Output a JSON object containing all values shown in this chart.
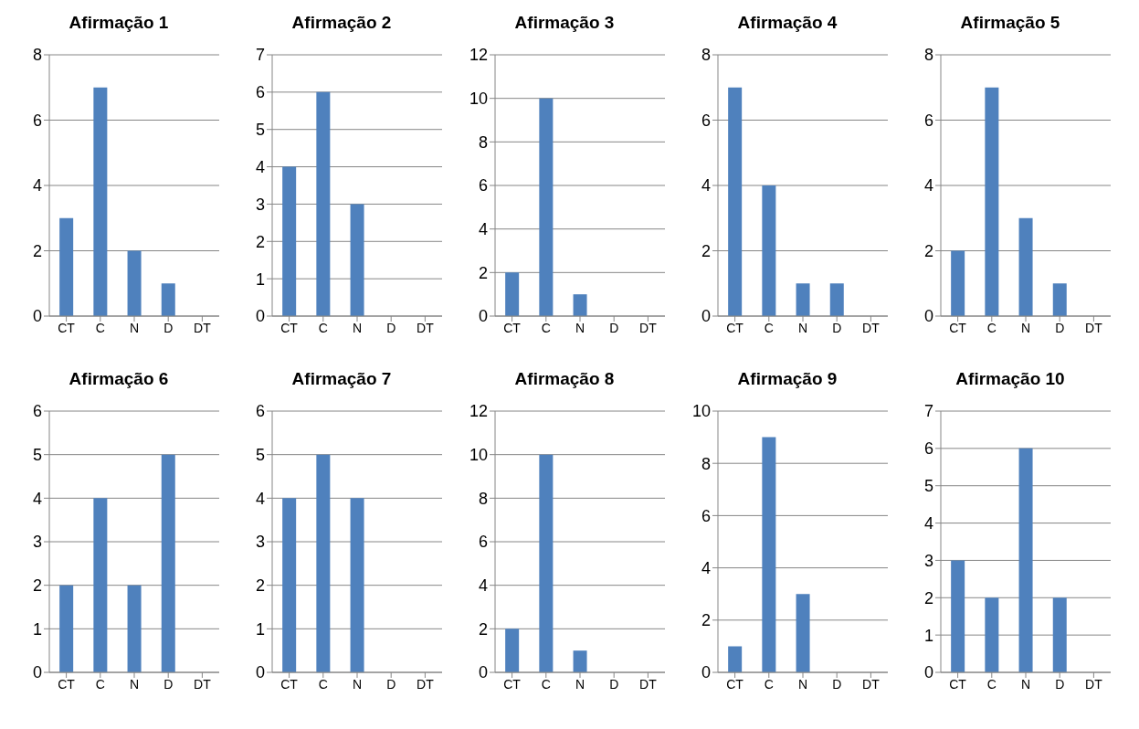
{
  "chart_data": [
    {
      "type": "bar",
      "title": "Afirmação 1",
      "categories": [
        "CT",
        "C",
        "N",
        "D",
        "DT"
      ],
      "values": [
        3,
        7,
        2,
        1,
        0
      ],
      "color": "#4f81bd",
      "ylim": [
        0,
        8
      ],
      "yticks": [
        0,
        2,
        4,
        6,
        8
      ],
      "grid": "y"
    },
    {
      "type": "bar",
      "title": "Afirmação 2",
      "categories": [
        "CT",
        "C",
        "N",
        "D",
        "DT"
      ],
      "values": [
        4,
        6,
        3,
        0,
        0
      ],
      "color": "#4f81bd",
      "ylim": [
        0,
        7
      ],
      "yticks": [
        0,
        1,
        2,
        3,
        4,
        5,
        6,
        7
      ],
      "grid": "y"
    },
    {
      "type": "bar",
      "title": "Afirmação 3",
      "categories": [
        "CT",
        "C",
        "N",
        "D",
        "DT"
      ],
      "values": [
        2,
        10,
        1,
        0,
        0
      ],
      "color": "#4f81bd",
      "ylim": [
        0,
        12
      ],
      "yticks": [
        0,
        2,
        4,
        6,
        8,
        10,
        12
      ],
      "grid": "y"
    },
    {
      "type": "bar",
      "title": "Afirmação 4",
      "categories": [
        "CT",
        "C",
        "N",
        "D",
        "DT"
      ],
      "values": [
        7,
        4,
        1,
        1,
        0
      ],
      "color": "#4f81bd",
      "ylim": [
        0,
        8
      ],
      "yticks": [
        0,
        2,
        4,
        6,
        8
      ],
      "grid": "y"
    },
    {
      "type": "bar",
      "title": "Afirmação 5",
      "categories": [
        "CT",
        "C",
        "N",
        "D",
        "DT"
      ],
      "values": [
        2,
        7,
        3,
        1,
        0
      ],
      "color": "#4f81bd",
      "ylim": [
        0,
        8
      ],
      "yticks": [
        0,
        2,
        4,
        6,
        8
      ],
      "grid": "y"
    },
    {
      "type": "bar",
      "title": "Afirmação 6",
      "categories": [
        "CT",
        "C",
        "N",
        "D",
        "DT"
      ],
      "values": [
        2,
        4,
        2,
        5,
        0
      ],
      "color": "#4f81bd",
      "ylim": [
        0,
        6
      ],
      "yticks": [
        0,
        1,
        2,
        3,
        4,
        5,
        6
      ],
      "grid": "y"
    },
    {
      "type": "bar",
      "title": "Afirmação 7",
      "categories": [
        "CT",
        "C",
        "N",
        "D",
        "DT"
      ],
      "values": [
        4,
        5,
        4,
        0,
        0
      ],
      "color": "#4f81bd",
      "ylim": [
        0,
        6
      ],
      "yticks": [
        0,
        1,
        2,
        3,
        4,
        5,
        6
      ],
      "grid": "y"
    },
    {
      "type": "bar",
      "title": "Afirmação 8",
      "categories": [
        "CT",
        "C",
        "N",
        "D",
        "DT"
      ],
      "values": [
        2,
        10,
        1,
        0,
        0
      ],
      "color": "#4f81bd",
      "ylim": [
        0,
        12
      ],
      "yticks": [
        0,
        2,
        4,
        6,
        8,
        10,
        12
      ],
      "grid": "y"
    },
    {
      "type": "bar",
      "title": "Afirmação 9",
      "categories": [
        "CT",
        "C",
        "N",
        "D",
        "DT"
      ],
      "values": [
        1,
        9,
        3,
        0,
        0
      ],
      "color": "#4f81bd",
      "ylim": [
        0,
        10
      ],
      "yticks": [
        0,
        2,
        4,
        6,
        8,
        10
      ],
      "grid": "y"
    },
    {
      "type": "bar",
      "title": "Afirmação 10",
      "categories": [
        "CT",
        "C",
        "N",
        "D",
        "DT"
      ],
      "values": [
        3,
        2,
        6,
        2,
        0
      ],
      "color": "#4f81bd",
      "ylim": [
        0,
        7
      ],
      "yticks": [
        0,
        1,
        2,
        3,
        4,
        5,
        6,
        7
      ],
      "grid": "y"
    }
  ]
}
